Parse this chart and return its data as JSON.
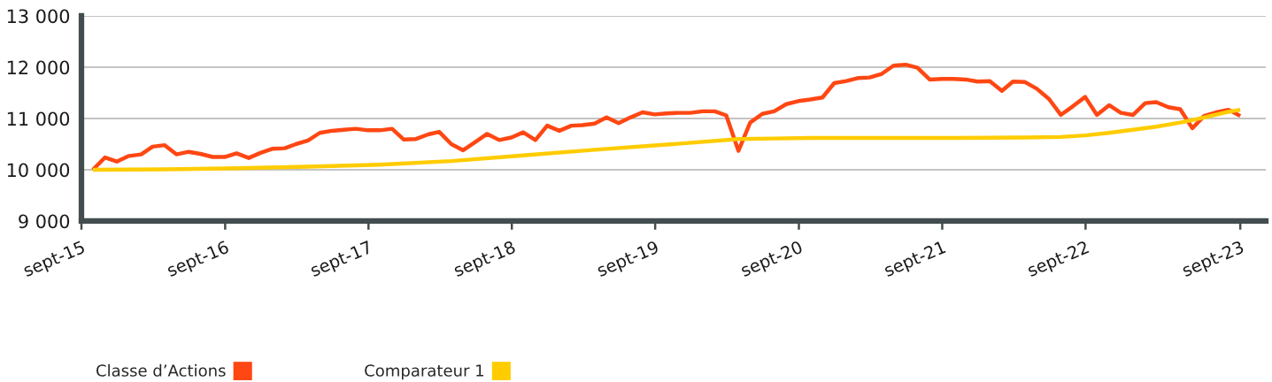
{
  "chart_data": {
    "type": "line",
    "x": [
      "2015-09-30",
      "2015-10-31",
      "2015-11-30",
      "2015-12-31",
      "2016-01-31",
      "2016-02-29",
      "2016-03-31",
      "2016-04-30",
      "2016-05-31",
      "2016-06-30",
      "2016-07-31",
      "2016-08-31",
      "2016-09-30",
      "2016-10-31",
      "2016-11-30",
      "2016-12-31",
      "2017-01-31",
      "2017-02-28",
      "2017-03-31",
      "2017-04-30",
      "2017-05-31",
      "2017-06-30",
      "2017-07-31",
      "2017-08-31",
      "2017-09-30",
      "2017-10-31",
      "2017-11-30",
      "2017-12-31",
      "2018-01-31",
      "2018-02-28",
      "2018-03-31",
      "2018-04-30",
      "2018-05-31",
      "2018-06-30",
      "2018-07-31",
      "2018-08-31",
      "2018-09-30",
      "2018-10-31",
      "2018-11-30",
      "2018-12-31",
      "2019-01-31",
      "2019-02-28",
      "2019-03-31",
      "2019-04-30",
      "2019-05-31",
      "2019-06-30",
      "2019-07-31",
      "2019-08-31",
      "2019-09-30",
      "2019-10-31",
      "2019-11-30",
      "2019-12-31",
      "2020-01-31",
      "2020-02-29",
      "2020-03-31",
      "2020-04-30",
      "2020-05-31",
      "2020-06-30",
      "2020-07-31",
      "2020-08-31",
      "2020-09-30",
      "2020-10-31",
      "2020-11-30",
      "2020-12-31",
      "2021-01-31",
      "2021-02-28",
      "2021-03-31",
      "2021-04-30",
      "2021-05-31",
      "2021-06-30",
      "2021-07-31",
      "2021-08-31",
      "2021-09-30",
      "2021-10-31",
      "2021-11-30",
      "2021-12-31",
      "2022-01-31",
      "2022-02-28",
      "2022-03-31",
      "2022-04-30",
      "2022-05-31",
      "2022-06-30",
      "2022-07-31",
      "2022-08-31",
      "2022-09-30",
      "2022-10-31",
      "2022-11-30",
      "2022-12-31",
      "2023-01-31",
      "2023-02-28",
      "2023-03-31",
      "2023-04-30",
      "2023-05-31",
      "2023-06-30",
      "2023-07-31",
      "2023-08-31",
      "2023-09-30"
    ],
    "series": [
      {
        "name": "Classe d’Actions",
        "color": "#ff4713",
        "values": [
          10000,
          10240,
          10160,
          10270,
          10300,
          10450,
          10480,
          10300,
          10350,
          10310,
          10250,
          10250,
          10320,
          10230,
          10330,
          10410,
          10420,
          10500,
          10570,
          10720,
          10760,
          10780,
          10800,
          10770,
          10770,
          10800,
          10590,
          10600,
          10690,
          10740,
          10500,
          10380,
          10540,
          10700,
          10580,
          10630,
          10730,
          10580,
          10860,
          10760,
          10860,
          10870,
          10900,
          11020,
          10910,
          11020,
          11120,
          11080,
          11100,
          11110,
          11110,
          11140,
          11140,
          11060,
          10370,
          10920,
          11090,
          11140,
          11280,
          11340,
          11370,
          11410,
          11690,
          11730,
          11790,
          11800,
          11870,
          12030,
          12050,
          11990,
          11760,
          11770,
          11770,
          11760,
          11720,
          11730,
          11540,
          11720,
          11710,
          11580,
          11380,
          11070,
          11240,
          11420,
          11070,
          11260,
          11110,
          11070,
          11300,
          11320,
          11220,
          11180,
          10810,
          11050,
          11120,
          11170,
          11050
        ]
      },
      {
        "name": "Comparateur 1",
        "color": "#ffcc00",
        "x": [
          "2015-09-30",
          "2016-03-31",
          "2016-09-30",
          "2017-03-31",
          "2017-09-30",
          "2018-03-31",
          "2018-09-30",
          "2019-03-31",
          "2019-09-30",
          "2020-03-31",
          "2020-06-30",
          "2020-09-30",
          "2021-03-31",
          "2021-09-30",
          "2022-03-31",
          "2022-06-30",
          "2022-08-31",
          "2022-10-31",
          "2022-12-31",
          "2023-02-28",
          "2023-04-30",
          "2023-06-30",
          "2023-08-31",
          "2023-09-30"
        ],
        "values": [
          10000,
          10010,
          10030,
          10060,
          10100,
          10170,
          10280,
          10390,
          10490,
          10600,
          10610,
          10620,
          10620,
          10620,
          10630,
          10640,
          10670,
          10720,
          10780,
          10840,
          10920,
          11020,
          11130,
          11170
        ]
      }
    ],
    "xlim": [
      "2015-09-01",
      "2023-12-04"
    ],
    "xticks": [
      {
        "value": "2015-09-01",
        "label": "sept-15"
      },
      {
        "value": "2016-09-01",
        "label": "sept-16"
      },
      {
        "value": "2017-09-01",
        "label": "sept-17"
      },
      {
        "value": "2018-09-01",
        "label": "sept-18"
      },
      {
        "value": "2019-09-01",
        "label": "sept-19"
      },
      {
        "value": "2020-09-01",
        "label": "sept-20"
      },
      {
        "value": "2021-09-01",
        "label": "sept-21"
      },
      {
        "value": "2022-09-01",
        "label": "sept-22"
      },
      {
        "value": "2023-09-30",
        "label": "sept-23"
      }
    ],
    "ylim": [
      9000,
      13000
    ],
    "yticks": [
      {
        "value": 9000,
        "label": "9 000"
      },
      {
        "value": 10000,
        "label": "10 000"
      },
      {
        "value": 11000,
        "label": "11 000"
      },
      {
        "value": 12000,
        "label": "12 000"
      },
      {
        "value": 13000,
        "label": "13 000"
      }
    ],
    "grid": "y",
    "legend": "bottom",
    "line_style": "solid"
  }
}
